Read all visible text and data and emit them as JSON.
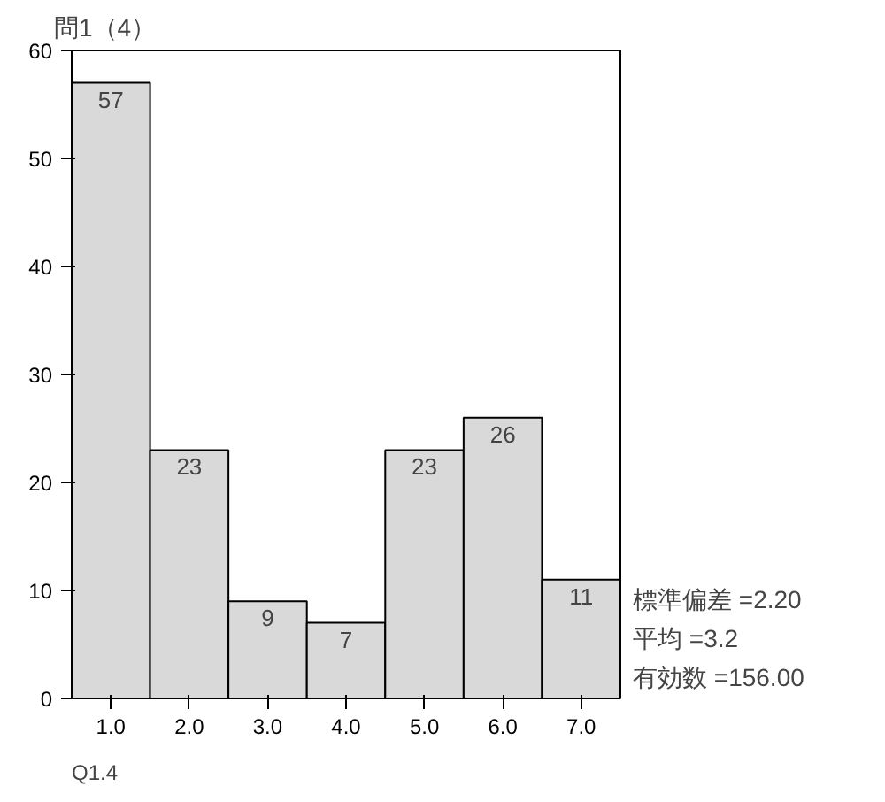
{
  "chart_data": {
    "type": "histogram",
    "title": "問1（4）",
    "bins": [
      0.5,
      1.5,
      2.5,
      3.5,
      4.5,
      5.5,
      6.5,
      7.5
    ],
    "values": [
      57,
      23,
      9,
      7,
      23,
      26,
      11
    ],
    "color": "#d9d9d9",
    "data_labels": true,
    "xlim": [
      0.5,
      7.5
    ],
    "xticks": [
      {
        "value": 1,
        "label": "1.0"
      },
      {
        "value": 2,
        "label": "2.0"
      },
      {
        "value": 3,
        "label": "3.0"
      },
      {
        "value": 4,
        "label": "4.0"
      },
      {
        "value": 5,
        "label": "5.0"
      },
      {
        "value": 6,
        "label": "6.0"
      },
      {
        "value": 7,
        "label": "7.0"
      }
    ],
    "ylim": [
      0,
      60
    ],
    "yticks": [
      0,
      10,
      20,
      30,
      40,
      50,
      60
    ],
    "grid": false,
    "annotations": [
      "標準偏差 =2.20",
      "平均 =3.2",
      "有効数 =156.00",
      "Q1.4"
    ]
  }
}
